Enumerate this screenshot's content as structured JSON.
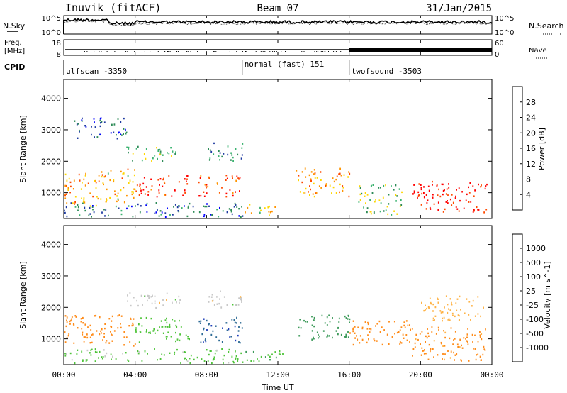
{
  "header": {
    "site": "Inuvik (fitACF)",
    "beam": "Beam 07",
    "date": "31/Jan/2015"
  },
  "nsky_panel": {
    "label": "N.Sky",
    "tick_top": "10^5",
    "tick_bottom": "10^0",
    "right_label": "N.Search",
    "right_tick_top": "10^5",
    "right_tick_bottom": "10^0"
  },
  "freq_panel": {
    "label_line1": "Freq.",
    "label_line2": "[MHz]",
    "tick_top": "18",
    "tick_bottom": "8",
    "right_label": "Nave",
    "right_tick_top": "60",
    "right_tick_bottom": "0"
  },
  "cpid": {
    "label": "CPID",
    "segments": [
      {
        "name": "ulfscan -3350",
        "start_hour": 0
      },
      {
        "name": "normal (fast) 151",
        "start_hour": 10
      },
      {
        "name": "twofsound -3503",
        "start_hour": 16
      }
    ]
  },
  "power_colorbar": {
    "label": "Power [dB]",
    "ticks": [
      "28",
      "24",
      "20",
      "16",
      "12",
      "8",
      "4"
    ],
    "colors": [
      "#ff0000",
      "#ff4a00",
      "#ff9400",
      "#ffd700",
      "#3cb371",
      "#2e8b57",
      "#1e3aa0",
      "#0000ff"
    ]
  },
  "velocity_colorbar": {
    "label": "Velocity [m s^-1]",
    "ticks": [
      "1000",
      "500",
      "100",
      "25",
      "-25",
      "-100",
      "-500",
      "-1000"
    ],
    "colors": [
      "#1f3fb8",
      "#2e6b95",
      "#3d9a5a",
      "#4fc43a",
      "#c8c8c8",
      "#ffb347",
      "#ff8c1a",
      "#ff5000",
      "#ff0000"
    ]
  },
  "chart_data": [
    {
      "type": "heatmap",
      "name": "power",
      "ylabel": "Slant Range [km]",
      "ylim": [
        180,
        4600
      ],
      "yticks": [
        "1000",
        "2000",
        "3000",
        "4000"
      ],
      "xlim": [
        0,
        24
      ],
      "patches": [
        {
          "t0": 0.0,
          "t1": 2.0,
          "r0": 600,
          "r1": 1700,
          "p": 22
        },
        {
          "t0": 2.0,
          "t1": 4.0,
          "r0": 700,
          "r1": 1800,
          "p": 20
        },
        {
          "t0": 3.5,
          "t1": 6.5,
          "r0": 2000,
          "r1": 2500,
          "p": 14
        },
        {
          "t0": 4.0,
          "t1": 7.0,
          "r0": 900,
          "r1": 1600,
          "p": 28
        },
        {
          "t0": 7.5,
          "t1": 10.0,
          "r0": 900,
          "r1": 1600,
          "p": 27
        },
        {
          "t0": 8.0,
          "t1": 10.0,
          "r0": 2000,
          "r1": 2600,
          "p": 10
        },
        {
          "t0": 10.0,
          "t1": 12.0,
          "r0": 300,
          "r1": 650,
          "p": 18
        },
        {
          "t0": 13.0,
          "t1": 16.0,
          "r0": 900,
          "r1": 1800,
          "p": 22
        },
        {
          "t0": 16.5,
          "t1": 19.0,
          "r0": 300,
          "r1": 1300,
          "p": 14
        },
        {
          "t0": 19.5,
          "t1": 23.7,
          "r0": 400,
          "r1": 1400,
          "p": 30
        },
        {
          "t0": 0.0,
          "t1": 10.0,
          "r0": 250,
          "r1": 700,
          "p": 8
        },
        {
          "t0": 0.5,
          "t1": 3.5,
          "r0": 2700,
          "r1": 3400,
          "p": 6
        }
      ]
    },
    {
      "type": "heatmap",
      "name": "velocity",
      "ylabel": "Slant Range [km]",
      "ylim": [
        180,
        4600
      ],
      "yticks": [
        "1000",
        "2000",
        "3000",
        "4000"
      ],
      "xlabel": "Time UT",
      "xlim": [
        0,
        24
      ],
      "xticks": [
        "00:00",
        "04:00",
        "08:00",
        "12:00",
        "16:00",
        "20:00",
        "00:00"
      ],
      "patches": [
        {
          "t0": 0.0,
          "t1": 4.0,
          "r0": 800,
          "r1": 1800,
          "v": -300
        },
        {
          "t0": 4.0,
          "t1": 7.0,
          "r0": 900,
          "r1": 1700,
          "v": 60
        },
        {
          "t0": 3.5,
          "t1": 6.5,
          "r0": 2000,
          "r1": 2500,
          "v": 0
        },
        {
          "t0": 7.5,
          "t1": 10.0,
          "r0": 900,
          "r1": 1700,
          "v": 800
        },
        {
          "t0": 8.0,
          "t1": 10.0,
          "r0": 2000,
          "r1": 2600,
          "v": 0
        },
        {
          "t0": 10.0,
          "t1": 12.5,
          "r0": 300,
          "r1": 650,
          "v": 80
        },
        {
          "t0": 13.0,
          "t1": 16.0,
          "r0": 1000,
          "r1": 1800,
          "v": 200
        },
        {
          "t0": 16.0,
          "t1": 19.5,
          "r0": 800,
          "r1": 1600,
          "v": -200
        },
        {
          "t0": 19.5,
          "t1": 23.7,
          "r0": 300,
          "r1": 1400,
          "v": -150
        },
        {
          "t0": 0.0,
          "t1": 10.0,
          "r0": 250,
          "r1": 700,
          "v": 50
        },
        {
          "t0": 20.0,
          "t1": 23.5,
          "r0": 1600,
          "r1": 2400,
          "v": -60
        }
      ]
    }
  ]
}
